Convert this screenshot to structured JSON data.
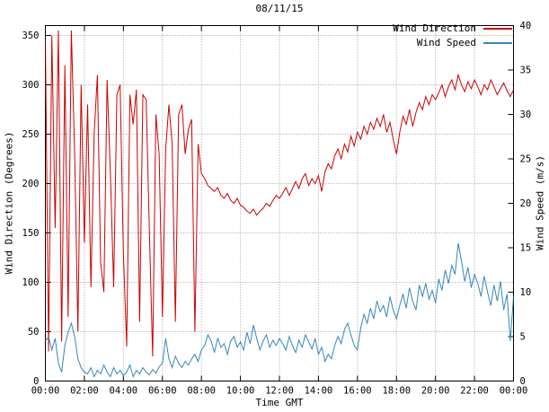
{
  "title": "08/11/15",
  "axes": {
    "x": {
      "label": "Time GMT",
      "range_hours": [
        0,
        24
      ],
      "tick_hours": [
        0,
        2,
        4,
        6,
        8,
        10,
        12,
        14,
        16,
        18,
        20,
        22,
        24
      ],
      "tick_labels": [
        "00:00",
        "02:00",
        "04:00",
        "06:00",
        "08:00",
        "10:00",
        "12:00",
        "14:00",
        "16:00",
        "18:00",
        "20:00",
        "22:00",
        "00:00"
      ]
    },
    "y_left": {
      "label": "Wind Direction (Degrees)",
      "range": [
        0,
        360
      ],
      "tick_values": [
        0,
        50,
        100,
        150,
        200,
        250,
        300,
        350
      ]
    },
    "y_right": {
      "label": "Wind Speed (m/s)",
      "range": [
        0,
        40
      ],
      "tick_values": [
        0,
        5,
        10,
        15,
        20,
        25,
        30,
        35,
        40
      ]
    }
  },
  "legend": [
    {
      "label": "Wind Direction",
      "color": "#cc0000"
    },
    {
      "label": "Wind Speed",
      "color": "#3388bb"
    }
  ],
  "colors": {
    "direction": "#cc0000",
    "speed": "#3388bb",
    "grid": "#999999",
    "axis": "#000000",
    "text": "#000000",
    "background": "#ffffff"
  },
  "chart_data": {
    "type": "line",
    "title": "08/11/15",
    "xlabel": "Time GMT",
    "x_unit": "hours GMT",
    "x_range_hours": [
      0,
      24
    ],
    "x_start_hour": 0,
    "x_step_minutes": 10,
    "grid": true,
    "legend_position": "top-right",
    "y_left_label": "Wind Direction (Degrees)",
    "y_left_range": [
      0,
      360
    ],
    "y_right_label": "Wind Speed (m/s)",
    "y_right_range": [
      0,
      40
    ],
    "series": [
      {
        "name": "Wind Direction",
        "axis": "left",
        "unit": "Degrees",
        "color": "#cc0000",
        "values": [
          345,
          30,
          350,
          155,
          355,
          40,
          320,
          65,
          355,
          230,
          50,
          300,
          140,
          280,
          95,
          250,
          310,
          120,
          90,
          305,
          210,
          95,
          290,
          300,
          130,
          35,
          290,
          260,
          295,
          60,
          290,
          285,
          150,
          25,
          270,
          230,
          65,
          235,
          280,
          240,
          60,
          270,
          280,
          230,
          255,
          265,
          50,
          240,
          210,
          205,
          198,
          195,
          192,
          196,
          188,
          185,
          190,
          183,
          180,
          185,
          178,
          176,
          172,
          170,
          174,
          168,
          172,
          175,
          180,
          177,
          183,
          188,
          185,
          190,
          196,
          188,
          195,
          202,
          195,
          205,
          210,
          198,
          205,
          200,
          208,
          192,
          212,
          220,
          215,
          228,
          235,
          225,
          240,
          232,
          248,
          238,
          252,
          245,
          258,
          250,
          262,
          255,
          266,
          258,
          270,
          252,
          262,
          245,
          230,
          252,
          268,
          260,
          275,
          258,
          272,
          282,
          275,
          288,
          280,
          290,
          285,
          292,
          300,
          288,
          298,
          305,
          295,
          310,
          300,
          293,
          303,
          296,
          305,
          298,
          290,
          300,
          295,
          305,
          298,
          290,
          296,
          302,
          294,
          288,
          295
        ]
      },
      {
        "name": "Wind Speed",
        "axis": "right",
        "unit": "m/s",
        "color": "#3388bb",
        "values": [
          4.5,
          5.0,
          3.5,
          4.8,
          2.0,
          1.0,
          4.0,
          5.5,
          6.5,
          5.0,
          2.5,
          1.5,
          1.0,
          0.8,
          1.5,
          0.5,
          1.2,
          0.8,
          1.8,
          1.0,
          0.5,
          1.5,
          0.8,
          1.2,
          0.6,
          1.0,
          1.8,
          0.5,
          1.2,
          0.8,
          1.5,
          1.0,
          0.7,
          1.3,
          0.9,
          1.6,
          2.0,
          4.8,
          2.5,
          1.5,
          2.8,
          2.0,
          1.5,
          2.2,
          1.8,
          2.5,
          3.0,
          2.2,
          3.5,
          4.0,
          5.2,
          4.5,
          3.2,
          4.8,
          3.8,
          4.2,
          3.0,
          4.5,
          5.0,
          3.8,
          4.4,
          3.5,
          5.5,
          4.2,
          6.3,
          4.8,
          3.5,
          4.5,
          5.2,
          3.8,
          4.6,
          4.0,
          4.8,
          4.2,
          3.5,
          5.0,
          4.0,
          3.2,
          4.6,
          3.8,
          5.2,
          4.4,
          3.6,
          4.8,
          3.0,
          3.8,
          2.2,
          3.0,
          2.5,
          4.0,
          5.0,
          4.2,
          5.8,
          6.5,
          5.2,
          4.0,
          3.5,
          6.0,
          7.5,
          6.5,
          8.2,
          7.0,
          9.0,
          7.8,
          8.5,
          7.2,
          9.5,
          8.0,
          7.0,
          8.5,
          9.8,
          8.2,
          10.5,
          9.0,
          8.0,
          10.8,
          9.5,
          11.0,
          9.2,
          10.2,
          8.8,
          11.5,
          10.2,
          12.5,
          11.0,
          13.0,
          12.0,
          15.5,
          13.5,
          11.2,
          12.8,
          10.5,
          12.0,
          11.0,
          9.5,
          11.8,
          10.0,
          8.5,
          10.8,
          9.0,
          11.2,
          8.0,
          9.8,
          4.5,
          9.5
        ]
      }
    ]
  }
}
